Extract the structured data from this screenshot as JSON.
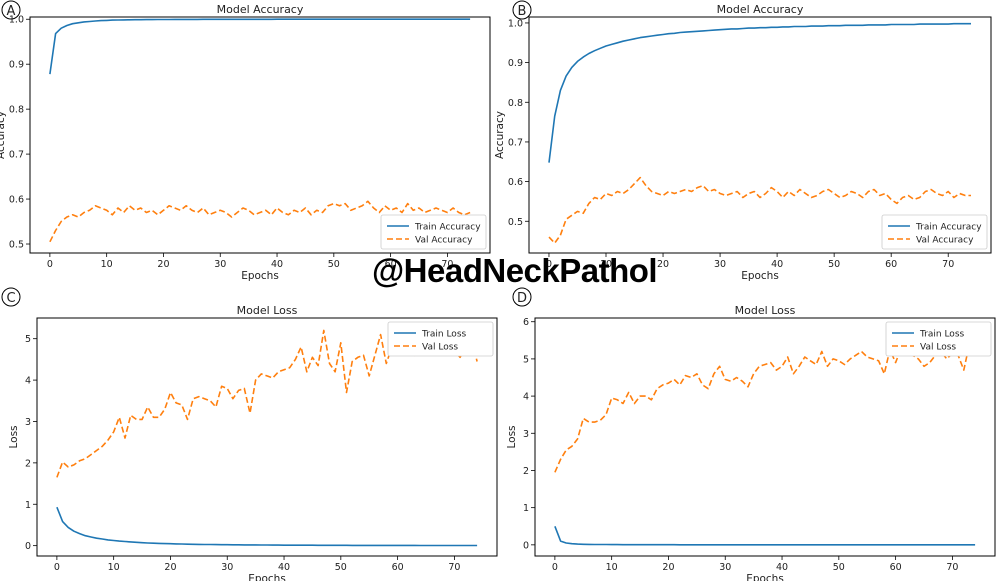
{
  "watermark": "@HeadNeckPathol",
  "colors": {
    "train": "#1f77b4",
    "val": "#ff7f0e",
    "axis": "#000000",
    "background": "#ffffff"
  },
  "chart_data": [
    {
      "panel_label": "A",
      "type": "line",
      "title": "Model Accuracy",
      "xlabel": "Epochs",
      "ylabel": "Accuracy",
      "xlim": [
        -3.5,
        77.5
      ],
      "ylim": [
        0.48,
        1.005
      ],
      "xticks": [
        "0",
        "10",
        "20",
        "30",
        "40",
        "50",
        "60",
        "70"
      ],
      "xtick_values": [
        0,
        10,
        20,
        30,
        40,
        50,
        60,
        70
      ],
      "yticks": [
        "0.5",
        "0.6",
        "0.7",
        "0.8",
        "0.9",
        "1.0"
      ],
      "ytick_values": [
        0.5,
        0.6,
        0.7,
        0.8,
        0.9,
        1.0
      ],
      "legend_position": "lower-right",
      "grid": false,
      "series": [
        {
          "name": "Train Accuracy",
          "style": "solid",
          "color": "#1f77b4",
          "values": [
            0.878,
            0.968,
            0.98,
            0.986,
            0.99,
            0.992,
            0.994,
            0.995,
            0.996,
            0.997,
            0.9975,
            0.998,
            0.9983,
            0.9986,
            0.9988,
            0.999,
            0.9991,
            0.9992,
            0.9993,
            0.9994,
            0.9995,
            0.9995,
            0.9996,
            0.9996,
            0.9997,
            0.9997,
            0.9997,
            0.9998,
            0.9998,
            0.9998,
            0.9998,
            0.9999,
            0.9999,
            0.9999,
            0.9999,
            0.9999,
            0.9999,
            0.9999,
            0.9999,
            0.9999,
            1.0,
            1.0,
            1.0,
            1.0,
            1.0,
            1.0,
            1.0,
            1.0,
            1.0,
            1.0,
            1.0,
            1.0,
            1.0,
            1.0,
            1.0,
            1.0,
            1.0,
            1.0,
            1.0,
            1.0,
            1.0,
            1.0,
            1.0,
            1.0,
            1.0,
            1.0,
            1.0,
            1.0,
            1.0,
            1.0,
            1.0,
            1.0,
            1.0,
            1.0,
            1.0
          ]
        },
        {
          "name": "Val Accuracy",
          "style": "dashed",
          "color": "#ff7f0e",
          "values": [
            0.505,
            0.53,
            0.55,
            0.56,
            0.565,
            0.56,
            0.57,
            0.575,
            0.585,
            0.58,
            0.575,
            0.565,
            0.58,
            0.57,
            0.585,
            0.575,
            0.58,
            0.57,
            0.575,
            0.565,
            0.575,
            0.585,
            0.58,
            0.575,
            0.585,
            0.575,
            0.57,
            0.58,
            0.565,
            0.57,
            0.575,
            0.57,
            0.56,
            0.57,
            0.58,
            0.575,
            0.565,
            0.57,
            0.575,
            0.565,
            0.58,
            0.57,
            0.565,
            0.575,
            0.57,
            0.58,
            0.565,
            0.575,
            0.57,
            0.585,
            0.59,
            0.585,
            0.59,
            0.575,
            0.58,
            0.585,
            0.595,
            0.58,
            0.57,
            0.585,
            0.575,
            0.58,
            0.57,
            0.59,
            0.575,
            0.58,
            0.57,
            0.575,
            0.58,
            0.575,
            0.57,
            0.58,
            0.57,
            0.565,
            0.57
          ]
        }
      ]
    },
    {
      "panel_label": "B",
      "type": "line",
      "title": "Model Accuracy",
      "xlabel": "Epochs",
      "ylabel": "Accuracy",
      "xlim": [
        -3.5,
        77.5
      ],
      "ylim": [
        0.42,
        1.015
      ],
      "xticks": [
        "0",
        "10",
        "20",
        "30",
        "40",
        "50",
        "60",
        "70"
      ],
      "xtick_values": [
        0,
        10,
        20,
        30,
        40,
        50,
        60,
        70
      ],
      "yticks": [
        "0.5",
        "0.6",
        "0.7",
        "0.8",
        "0.9",
        "1.0"
      ],
      "ytick_values": [
        0.5,
        0.6,
        0.7,
        0.8,
        0.9,
        1.0
      ],
      "legend_position": "lower-right",
      "grid": false,
      "series": [
        {
          "name": "Train Accuracy",
          "style": "solid",
          "color": "#1f77b4",
          "values": [
            0.648,
            0.765,
            0.83,
            0.866,
            0.888,
            0.903,
            0.914,
            0.923,
            0.93,
            0.936,
            0.942,
            0.946,
            0.95,
            0.954,
            0.957,
            0.96,
            0.963,
            0.965,
            0.967,
            0.969,
            0.971,
            0.973,
            0.974,
            0.976,
            0.977,
            0.978,
            0.979,
            0.98,
            0.981,
            0.982,
            0.983,
            0.984,
            0.985,
            0.985,
            0.986,
            0.987,
            0.987,
            0.988,
            0.988,
            0.989,
            0.989,
            0.99,
            0.99,
            0.991,
            0.991,
            0.991,
            0.992,
            0.992,
            0.992,
            0.993,
            0.993,
            0.993,
            0.994,
            0.994,
            0.994,
            0.994,
            0.995,
            0.995,
            0.995,
            0.995,
            0.996,
            0.996,
            0.996,
            0.996,
            0.996,
            0.997,
            0.997,
            0.997,
            0.997,
            0.997,
            0.997,
            0.998,
            0.998,
            0.998,
            0.998
          ]
        },
        {
          "name": "Val Accuracy",
          "style": "dashed",
          "color": "#ff7f0e",
          "values": [
            0.46,
            0.445,
            0.465,
            0.505,
            0.515,
            0.525,
            0.52,
            0.545,
            0.56,
            0.555,
            0.57,
            0.565,
            0.575,
            0.57,
            0.58,
            0.595,
            0.61,
            0.59,
            0.575,
            0.57,
            0.565,
            0.575,
            0.57,
            0.575,
            0.58,
            0.575,
            0.585,
            0.59,
            0.575,
            0.58,
            0.57,
            0.565,
            0.57,
            0.575,
            0.56,
            0.57,
            0.575,
            0.56,
            0.57,
            0.585,
            0.575,
            0.56,
            0.575,
            0.565,
            0.58,
            0.57,
            0.56,
            0.565,
            0.575,
            0.58,
            0.57,
            0.56,
            0.565,
            0.575,
            0.57,
            0.56,
            0.575,
            0.58,
            0.565,
            0.57,
            0.555,
            0.545,
            0.56,
            0.565,
            0.555,
            0.56,
            0.575,
            0.58,
            0.57,
            0.565,
            0.575,
            0.56,
            0.57,
            0.565,
            0.565
          ]
        }
      ]
    },
    {
      "panel_label": "C",
      "type": "line",
      "title": "Model Loss",
      "xlabel": "Epochs",
      "ylabel": "Loss",
      "xlim": [
        -3.5,
        77.5
      ],
      "ylim": [
        -0.25,
        5.5
      ],
      "xticks": [
        "0",
        "10",
        "20",
        "30",
        "40",
        "50",
        "60",
        "70"
      ],
      "xtick_values": [
        0,
        10,
        20,
        30,
        40,
        50,
        60,
        70
      ],
      "yticks": [
        "0",
        "1",
        "2",
        "3",
        "4",
        "5"
      ],
      "ytick_values": [
        0,
        1,
        2,
        3,
        4,
        5
      ],
      "legend_position": "upper-right",
      "grid": false,
      "series": [
        {
          "name": "Train Loss",
          "style": "solid",
          "color": "#1f77b4",
          "values": [
            0.93,
            0.58,
            0.44,
            0.35,
            0.29,
            0.24,
            0.21,
            0.18,
            0.16,
            0.14,
            0.125,
            0.11,
            0.1,
            0.09,
            0.08,
            0.072,
            0.065,
            0.06,
            0.055,
            0.05,
            0.046,
            0.042,
            0.039,
            0.036,
            0.033,
            0.031,
            0.029,
            0.027,
            0.025,
            0.023,
            0.022,
            0.021,
            0.02,
            0.019,
            0.018,
            0.017,
            0.016,
            0.015,
            0.014,
            0.013,
            0.012,
            0.012,
            0.011,
            0.011,
            0.01,
            0.01,
            0.009,
            0.009,
            0.009,
            0.008,
            0.008,
            0.008,
            0.007,
            0.007,
            0.007,
            0.006,
            0.006,
            0.006,
            0.006,
            0.005,
            0.005,
            0.005,
            0.005,
            0.005,
            0.004,
            0.004,
            0.004,
            0.004,
            0.004,
            0.004,
            0.004,
            0.003,
            0.003,
            0.003,
            0.003
          ]
        },
        {
          "name": "Val Loss",
          "style": "dashed",
          "color": "#ff7f0e",
          "values": [
            1.65,
            2.02,
            1.9,
            1.95,
            2.05,
            2.1,
            2.2,
            2.3,
            2.4,
            2.55,
            2.75,
            3.1,
            2.6,
            3.15,
            3.05,
            3.05,
            3.35,
            3.1,
            3.1,
            3.3,
            3.7,
            3.45,
            3.4,
            3.05,
            3.55,
            3.6,
            3.55,
            3.5,
            3.35,
            3.85,
            3.8,
            3.55,
            3.75,
            3.8,
            3.2,
            4.0,
            4.15,
            4.1,
            4.05,
            4.2,
            4.25,
            4.3,
            4.5,
            4.8,
            4.2,
            4.55,
            4.35,
            5.2,
            4.4,
            4.2,
            4.9,
            3.7,
            4.45,
            4.55,
            4.6,
            4.1,
            4.6,
            5.1,
            4.4,
            4.8,
            4.9,
            4.95,
            4.95,
            4.6,
            4.75,
            4.8,
            4.7,
            4.9,
            5.0,
            4.85,
            4.7,
            4.55,
            4.8,
            5.0,
            4.45
          ]
        }
      ]
    },
    {
      "panel_label": "D",
      "type": "line",
      "title": "Model Loss",
      "xlabel": "Epochs",
      "ylabel": "Loss",
      "xlim": [
        -3.5,
        77.5
      ],
      "ylim": [
        -0.3,
        6.1
      ],
      "xticks": [
        "0",
        "10",
        "20",
        "30",
        "40",
        "50",
        "60",
        "70"
      ],
      "xtick_values": [
        0,
        10,
        20,
        30,
        40,
        50,
        60,
        70
      ],
      "yticks": [
        "0",
        "1",
        "2",
        "3",
        "4",
        "5",
        "6"
      ],
      "ytick_values": [
        0,
        1,
        2,
        3,
        4,
        5,
        6
      ],
      "legend_position": "upper-right",
      "grid": false,
      "series": [
        {
          "name": "Train Loss",
          "style": "solid",
          "color": "#1f77b4",
          "values": [
            0.5,
            0.1,
            0.05,
            0.03,
            0.02,
            0.015,
            0.012,
            0.01,
            0.009,
            0.008,
            0.007,
            0.006,
            0.005,
            0.005,
            0.004,
            0.004,
            0.004,
            0.003,
            0.003,
            0.003,
            0.003,
            0.003,
            0.002,
            0.002,
            0.002,
            0.002,
            0.002,
            0.002,
            0.002,
            0.002,
            0.002,
            0.001,
            0.001,
            0.001,
            0.001,
            0.001,
            0.001,
            0.001,
            0.001,
            0.001,
            0.001,
            0.001,
            0.001,
            0.001,
            0.001,
            0.001,
            0.001,
            0.001,
            0.001,
            0.001,
            0.001,
            0.001,
            0.001,
            0.001,
            0.001,
            0.001,
            0.001,
            0.001,
            0.001,
            0.001,
            0.001,
            0.001,
            0.001,
            0.001,
            0.001,
            0.001,
            0.001,
            0.001,
            0.001,
            0.001,
            0.001,
            0.001,
            0.001,
            0.001,
            0.001
          ]
        },
        {
          "name": "Val Loss",
          "style": "dashed",
          "color": "#ff7f0e",
          "values": [
            1.95,
            2.3,
            2.55,
            2.65,
            2.85,
            3.4,
            3.3,
            3.3,
            3.35,
            3.5,
            3.95,
            3.9,
            3.8,
            4.1,
            3.8,
            4.0,
            4.0,
            3.9,
            4.2,
            4.3,
            4.35,
            4.45,
            4.3,
            4.55,
            4.5,
            4.6,
            4.3,
            4.2,
            4.6,
            4.8,
            4.45,
            4.4,
            4.5,
            4.4,
            4.25,
            4.6,
            4.8,
            4.85,
            4.9,
            4.7,
            4.8,
            5.05,
            4.6,
            4.8,
            5.05,
            4.95,
            4.85,
            5.2,
            4.8,
            5.0,
            4.95,
            4.85,
            5.0,
            5.1,
            5.2,
            5.05,
            5.0,
            4.95,
            4.6,
            5.25,
            4.9,
            5.3,
            5.2,
            5.1,
            5.0,
            4.8,
            4.9,
            5.1,
            5.2,
            5.0,
            5.15,
            5.1,
            4.7,
            5.4,
            5.3
          ]
        }
      ]
    }
  ]
}
